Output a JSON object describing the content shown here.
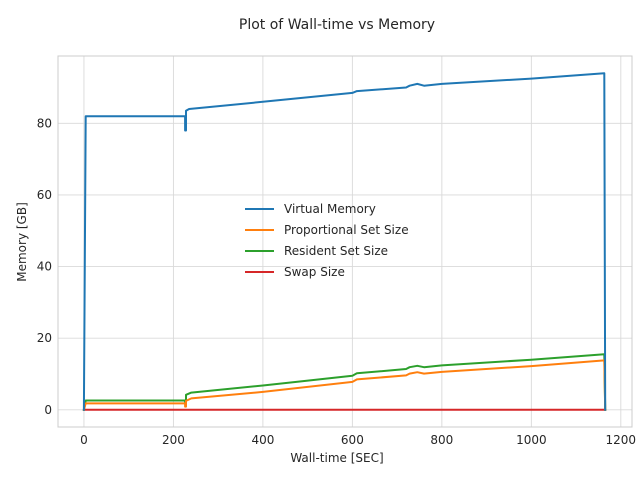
{
  "chart_data": {
    "type": "line",
    "title": "Plot of Wall-time vs Memory",
    "xlabel": "Wall-time [SEC]",
    "ylabel": "Memory [GB]",
    "xlim": [
      -58,
      1225
    ],
    "ylim": [
      -4.8,
      98.8
    ],
    "xticks": [
      0,
      200,
      400,
      600,
      800,
      1000,
      1200
    ],
    "yticks": [
      0,
      20,
      40,
      60,
      80
    ],
    "grid": true,
    "legend_position": "center",
    "series": [
      {
        "name": "Virtual Memory",
        "color": "#1f77b4",
        "x": [
          0,
          4,
          226,
          226,
          228,
          228,
          235,
          400,
          600,
          610,
          720,
          728,
          745,
          760,
          800,
          1000,
          1163,
          1165
        ],
        "y": [
          0,
          82,
          82,
          78,
          78,
          83.5,
          84,
          86,
          88.5,
          89,
          90,
          90.5,
          91,
          90.5,
          91,
          92.5,
          94,
          0
        ]
      },
      {
        "name": "Proportional Set Size",
        "color": "#ff7f0e",
        "x": [
          0,
          4,
          226,
          226,
          228,
          228,
          240,
          400,
          600,
          610,
          720,
          728,
          745,
          760,
          800,
          1000,
          1163,
          1165
        ],
        "y": [
          0,
          1.8,
          1.8,
          0.9,
          0.9,
          2.5,
          3.2,
          5.0,
          7.8,
          8.5,
          9.6,
          10.1,
          10.5,
          10.1,
          10.6,
          12.2,
          13.8,
          0
        ]
      },
      {
        "name": "Resident Set Size",
        "color": "#2ca02c",
        "x": [
          0,
          4,
          226,
          226,
          228,
          228,
          240,
          400,
          600,
          610,
          720,
          728,
          745,
          760,
          800,
          1000,
          1163,
          1165
        ],
        "y": [
          0,
          2.6,
          2.6,
          1.8,
          1.8,
          4.2,
          4.8,
          6.8,
          9.5,
          10.2,
          11.4,
          11.9,
          12.3,
          11.9,
          12.4,
          14.0,
          15.5,
          0
        ]
      },
      {
        "name": "Swap Size",
        "color": "#d62728",
        "x": [
          0,
          1165
        ],
        "y": [
          0,
          0
        ]
      }
    ]
  }
}
